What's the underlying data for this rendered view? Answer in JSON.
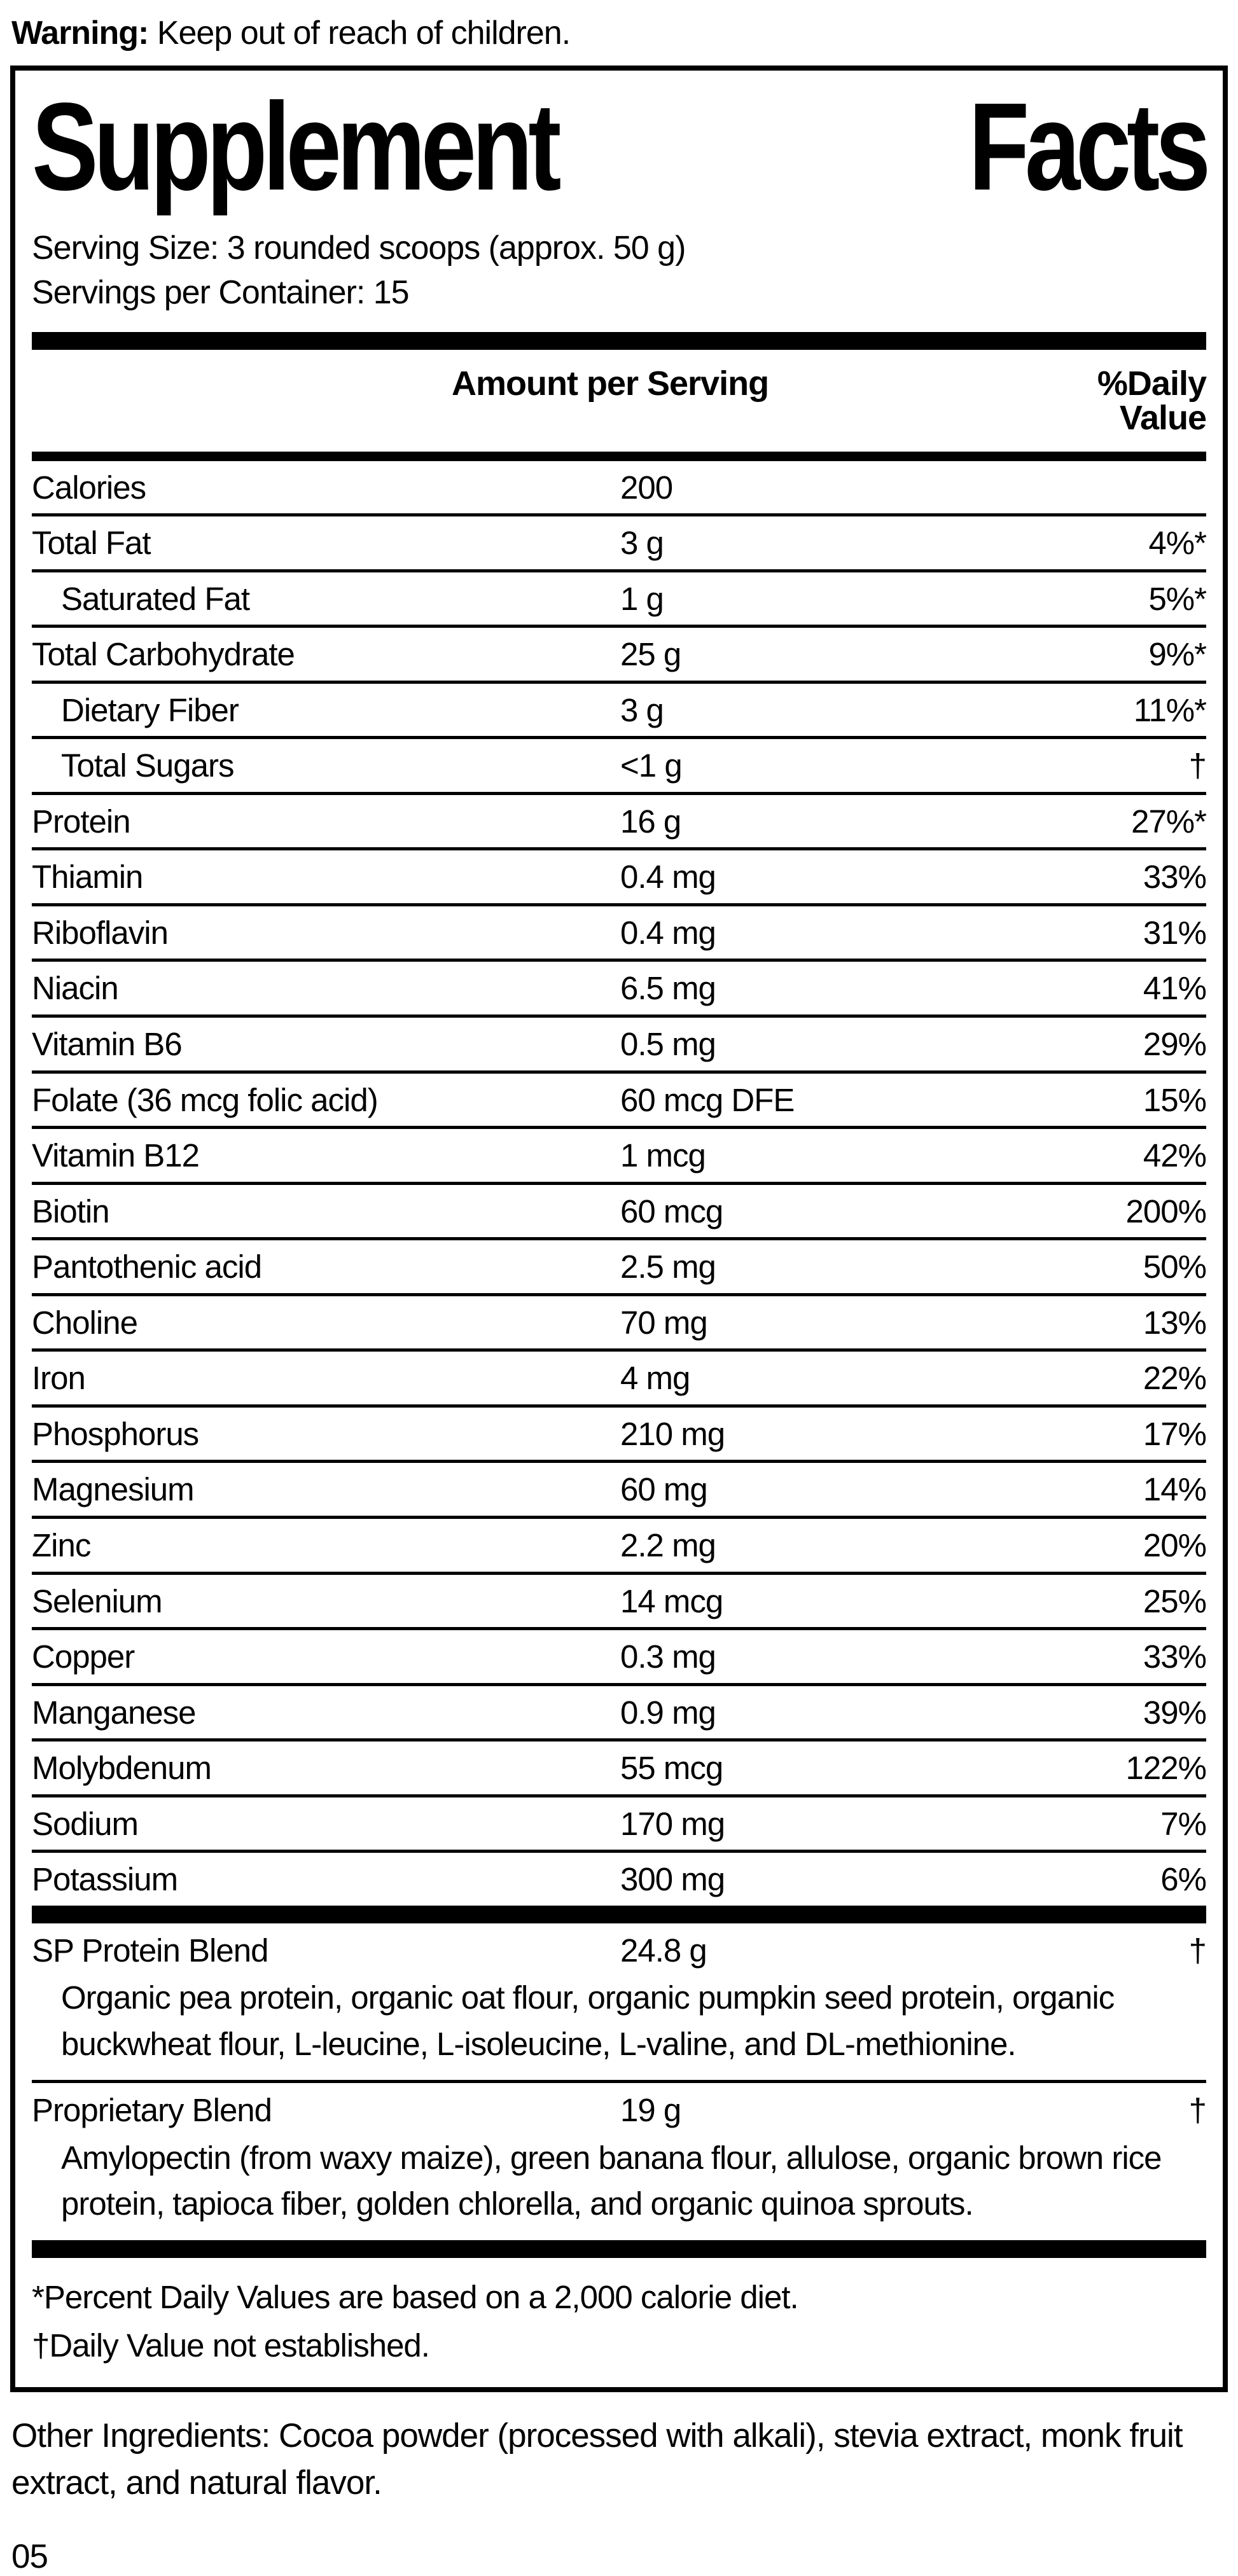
{
  "warning": {
    "label": "Warning:",
    "text": " Keep out of reach of children."
  },
  "title": {
    "left": "Supplement",
    "right": "Facts"
  },
  "serving": {
    "size": "Serving Size: 3 rounded scoops (approx. 50 g)",
    "per_container": "Servings per Container: 15"
  },
  "header": {
    "amount": "Amount per Serving",
    "dv": "%Daily Value"
  },
  "rows": [
    {
      "label": "Calories",
      "amount": "200",
      "dv": ""
    },
    {
      "label": "Total Fat",
      "amount": "3 g",
      "dv": "4%*"
    },
    {
      "label": "Saturated Fat",
      "amount": "1 g",
      "dv": "5%*"
    },
    {
      "label": "Total Carbohydrate",
      "amount": "25 g",
      "dv": "9%*"
    },
    {
      "label": "Dietary Fiber",
      "amount": "3 g",
      "dv": "11%*"
    },
    {
      "label": "Total Sugars",
      "amount": "<1 g",
      "dv": "†"
    },
    {
      "label": "Protein",
      "amount": "16 g",
      "dv": "27%*"
    },
    {
      "label": "Thiamin",
      "amount": "0.4 mg",
      "dv": "33%"
    },
    {
      "label": "Riboflavin",
      "amount": "0.4 mg",
      "dv": "31%"
    },
    {
      "label": "Niacin",
      "amount": "6.5 mg",
      "dv": "41%"
    },
    {
      "label": "Vitamin B6",
      "amount": "0.5 mg",
      "dv": "29%"
    },
    {
      "label": "Folate (36 mcg folic acid)",
      "amount": "60 mcg DFE",
      "dv": "15%"
    },
    {
      "label": "Vitamin B12",
      "amount": "1 mcg",
      "dv": "42%"
    },
    {
      "label": "Biotin",
      "amount": "60 mcg",
      "dv": "200%"
    },
    {
      "label": "Pantothenic acid",
      "amount": "2.5 mg",
      "dv": "50%"
    },
    {
      "label": "Choline",
      "amount": "70 mg",
      "dv": "13%"
    },
    {
      "label": "Iron",
      "amount": "4 mg",
      "dv": "22%"
    },
    {
      "label": "Phosphorus",
      "amount": "210 mg",
      "dv": "17%"
    },
    {
      "label": "Magnesium",
      "amount": "60 mg",
      "dv": "14%"
    },
    {
      "label": "Zinc",
      "amount": "2.2 mg",
      "dv": "20%"
    },
    {
      "label": "Selenium",
      "amount": "14 mcg",
      "dv": "25%"
    },
    {
      "label": "Copper",
      "amount": "0.3 mg",
      "dv": "33%"
    },
    {
      "label": "Manganese",
      "amount": "0.9 mg",
      "dv": "39%"
    },
    {
      "label": "Molybdenum",
      "amount": "55 mcg",
      "dv": "122%"
    },
    {
      "label": "Sodium",
      "amount": "170 mg",
      "dv": "7%"
    },
    {
      "label": "Potassium",
      "amount": "300 mg",
      "dv": "6%"
    }
  ],
  "blends": [
    {
      "label": "SP Protein Blend",
      "amount": "24.8 g",
      "dv": "†",
      "desc": "Organic pea protein, organic oat flour, organic pumpkin seed protein, organic buckwheat flour, L-leucine, L-isoleucine, L-valine, and DL-methionine."
    },
    {
      "label": "Proprietary Blend",
      "amount": "19 g",
      "dv": "†",
      "desc": "Amylopectin (from waxy maize), green banana flour, allulose, organic brown rice protein, tapioca fiber, golden chlorella, and organic quinoa sprouts."
    }
  ],
  "footnotes": [
    "*Percent Daily Values are based on a 2,000 calorie diet.",
    "†Daily Value not established."
  ],
  "other_ingredients": "Other Ingredients: Cocoa powder (processed with alkali), stevia extract, monk fruit extract, and natural flavor.",
  "page_number": "05",
  "colors": {
    "text": "#000000",
    "background": "#ffffff"
  }
}
